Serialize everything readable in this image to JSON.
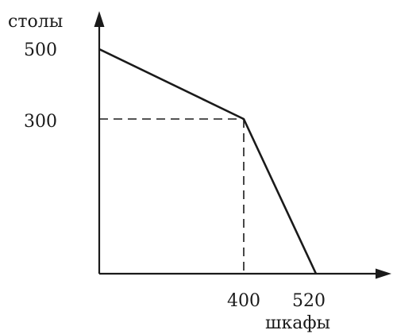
{
  "chart_data": {
    "type": "line",
    "xlabel": "шкафы",
    "ylabel": "столы",
    "x_ticks": [
      400,
      520
    ],
    "y_ticks": [
      500,
      300
    ],
    "xlim": [
      0,
      580
    ],
    "ylim": [
      0,
      540
    ],
    "series": [
      {
        "x": [
          0,
          400,
          520
        ],
        "y": [
          490,
          300,
          0
        ]
      }
    ],
    "guides": [
      {
        "x": 400,
        "y": 300
      }
    ],
    "grid": false,
    "legend": "none"
  }
}
